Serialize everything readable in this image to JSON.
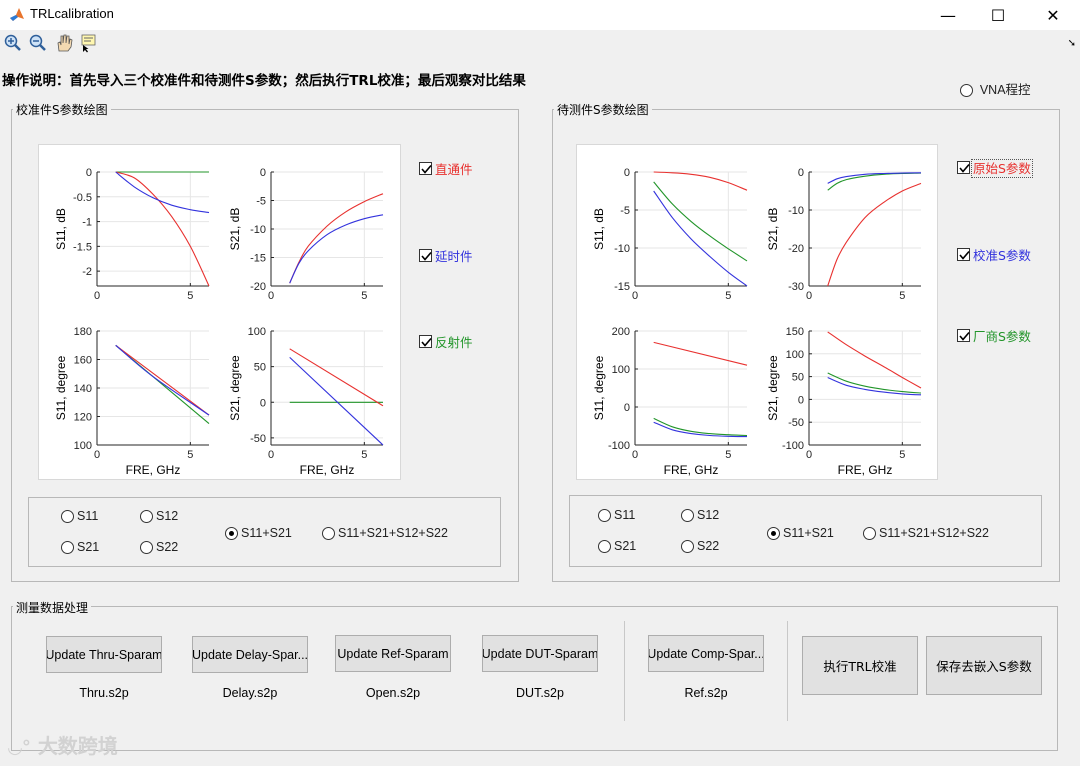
{
  "window": {
    "title": "TRLcalibration",
    "min": "—",
    "max": "☐",
    "close": "✕"
  },
  "toolbar": {
    "tools": [
      "zoom-in-icon",
      "zoom-out-icon",
      "pan-icon",
      "data-cursor-icon"
    ]
  },
  "instruction": "操作说明：首先导入三个校准件和待测件S参数；然后执行TRL校准；最后观察对比结果",
  "vna_radio": {
    "label": "VNA程控",
    "checked": false
  },
  "colors": {
    "red": "#e8312f",
    "blue": "#3333dd",
    "green": "#22952a"
  },
  "left_panel": {
    "title": "校准件S参数绘图",
    "legend": [
      {
        "label": "直通件",
        "color": "#e8312f",
        "checked": true
      },
      {
        "label": "延时件",
        "color": "#3333dd",
        "checked": true
      },
      {
        "label": "反射件",
        "color": "#22952a",
        "checked": true
      }
    ],
    "radios": [
      {
        "label": "S11",
        "checked": false
      },
      {
        "label": "S12",
        "checked": false
      },
      {
        "label": "S21",
        "checked": false
      },
      {
        "label": "S22",
        "checked": false
      },
      {
        "label": "S11+S21",
        "checked": true
      },
      {
        "label": "S11+S21+S12+S22",
        "checked": false
      }
    ]
  },
  "right_panel": {
    "title": "待测件S参数绘图",
    "legend": [
      {
        "label": "原始S参数",
        "color": "#e8312f",
        "checked": true
      },
      {
        "label": "校准S参数",
        "color": "#3333dd",
        "checked": true
      },
      {
        "label": "厂商S参数",
        "color": "#22952a",
        "checked": true
      }
    ],
    "radios": [
      {
        "label": "S11",
        "checked": false
      },
      {
        "label": "S12",
        "checked": false
      },
      {
        "label": "S21",
        "checked": false
      },
      {
        "label": "S22",
        "checked": false
      },
      {
        "label": "S11+S21",
        "checked": true
      },
      {
        "label": "S11+S21+S12+S22",
        "checked": false
      }
    ]
  },
  "chart_data": [
    {
      "type": "line",
      "id": "cal-s11-db",
      "ylabel": "S11, dB",
      "xlabel": "",
      "xlim": [
        0,
        6
      ],
      "ylim": [
        -2.3,
        0
      ],
      "xticks": [
        0,
        5
      ],
      "yticks": [
        0,
        -0.5,
        -1,
        -1.5,
        -2
      ],
      "yticklabels": [
        "0",
        "-0.5",
        "-1",
        "-1.5",
        "-2"
      ],
      "series": [
        {
          "color": "#22952a",
          "x": [
            1,
            6
          ],
          "y": [
            0,
            0
          ]
        },
        {
          "color": "#e8312f",
          "x": [
            1,
            2,
            3,
            4,
            5,
            6
          ],
          "y": [
            0,
            -0.12,
            -0.45,
            -0.9,
            -1.5,
            -2.3
          ]
        },
        {
          "color": "#3333dd",
          "x": [
            1,
            2,
            3,
            4,
            5,
            6
          ],
          "y": [
            0,
            -0.3,
            -0.52,
            -0.67,
            -0.76,
            -0.82
          ]
        }
      ]
    },
    {
      "type": "line",
      "id": "cal-s21-db",
      "ylabel": "S21, dB",
      "xlabel": "",
      "xlim": [
        0,
        6
      ],
      "ylim": [
        -20,
        0
      ],
      "xticks": [
        0,
        5
      ],
      "yticks": [
        0,
        -5,
        -10,
        -15,
        -20
      ],
      "yticklabels": [
        "0",
        "-5",
        "-10",
        "-15",
        "-20"
      ],
      "series": [
        {
          "color": "#e8312f",
          "x": [
            1,
            1.5,
            2,
            3,
            4,
            5,
            6
          ],
          "y": [
            -19.5,
            -15.8,
            -13,
            -9.5,
            -7,
            -5.2,
            -3.8
          ]
        },
        {
          "color": "#3333dd",
          "x": [
            1,
            1.5,
            2,
            3,
            4,
            5,
            6
          ],
          "y": [
            -19.5,
            -16,
            -13.8,
            -11,
            -9.3,
            -8.2,
            -7.5
          ]
        }
      ]
    },
    {
      "type": "line",
      "id": "cal-s11-deg",
      "ylabel": "S11, degree",
      "xlabel": "FRE, GHz",
      "xlim": [
        0,
        6
      ],
      "ylim": [
        100,
        180
      ],
      "xticks": [
        0,
        5
      ],
      "yticks": [
        100,
        120,
        140,
        160,
        180
      ],
      "yticklabels": [
        "100",
        "120",
        "140",
        "160",
        "180"
      ],
      "series": [
        {
          "color": "#22952a",
          "x": [
            1,
            6
          ],
          "y": [
            170,
            115
          ]
        },
        {
          "color": "#e8312f",
          "x": [
            1,
            6
          ],
          "y": [
            170,
            121
          ]
        },
        {
          "color": "#3333dd",
          "x": [
            1,
            3,
            6
          ],
          "y": [
            170,
            148,
            121
          ]
        }
      ]
    },
    {
      "type": "line",
      "id": "cal-s21-deg",
      "ylabel": "S21, degree",
      "xlabel": "FRE, GHz",
      "xlim": [
        0,
        6
      ],
      "ylim": [
        -60,
        100
      ],
      "xticks": [
        0,
        5
      ],
      "yticks": [
        100,
        50,
        0,
        -50
      ],
      "yticklabels": [
        "100",
        "50",
        "0",
        "-50"
      ],
      "series": [
        {
          "color": "#22952a",
          "x": [
            1,
            6
          ],
          "y": [
            0,
            0
          ]
        },
        {
          "color": "#e8312f",
          "x": [
            1,
            6
          ],
          "y": [
            75,
            -5
          ]
        },
        {
          "color": "#3333dd",
          "x": [
            1,
            6
          ],
          "y": [
            63,
            -60
          ]
        }
      ]
    },
    {
      "type": "line",
      "id": "dut-s11-db",
      "ylabel": "S11, dB",
      "xlabel": "",
      "xlim": [
        0,
        6
      ],
      "ylim": [
        -15,
        0
      ],
      "xticks": [
        0,
        5
      ],
      "yticks": [
        0,
        -5,
        -10,
        -15
      ],
      "yticklabels": [
        "0",
        "-5",
        "-10",
        "-15"
      ],
      "series": [
        {
          "color": "#e8312f",
          "x": [
            1,
            2,
            3,
            4,
            5,
            6
          ],
          "y": [
            0,
            -0.1,
            -0.3,
            -0.7,
            -1.4,
            -2.4
          ]
        },
        {
          "color": "#22952a",
          "x": [
            1,
            2,
            3,
            4,
            5,
            6
          ],
          "y": [
            -1.3,
            -4.2,
            -6.5,
            -8.4,
            -10.1,
            -11.7
          ]
        },
        {
          "color": "#3333dd",
          "x": [
            1,
            2,
            3,
            4,
            5,
            6
          ],
          "y": [
            -2.5,
            -6,
            -8.8,
            -11.1,
            -13.2,
            -15
          ]
        }
      ]
    },
    {
      "type": "line",
      "id": "dut-s21-db",
      "ylabel": "S21, dB",
      "xlabel": "",
      "xlim": [
        0,
        6
      ],
      "ylim": [
        -30,
        0
      ],
      "xticks": [
        0,
        5
      ],
      "yticks": [
        0,
        -10,
        -20,
        -30
      ],
      "yticklabels": [
        "0",
        "-10",
        "-20",
        "-30"
      ],
      "series": [
        {
          "color": "#e8312f",
          "x": [
            1,
            1.5,
            2,
            3,
            4,
            5,
            6
          ],
          "y": [
            -30,
            -23,
            -18.5,
            -12,
            -8,
            -5,
            -3
          ]
        },
        {
          "color": "#22952a",
          "x": [
            1,
            1.5,
            2,
            3,
            4,
            5,
            6
          ],
          "y": [
            -4.8,
            -3,
            -2,
            -1.1,
            -0.6,
            -0.4,
            -0.3
          ]
        },
        {
          "color": "#3333dd",
          "x": [
            1,
            1.5,
            2,
            3,
            4,
            5,
            6
          ],
          "y": [
            -3,
            -1.8,
            -1.2,
            -0.6,
            -0.4,
            -0.3,
            -0.2
          ]
        }
      ]
    },
    {
      "type": "line",
      "id": "dut-s11-deg",
      "ylabel": "S11, degree",
      "xlabel": "FRE, GHz",
      "xlim": [
        0,
        6
      ],
      "ylim": [
        -100,
        200
      ],
      "xticks": [
        0,
        5
      ],
      "yticks": [
        200,
        100,
        0,
        -100
      ],
      "yticklabels": [
        "200",
        "100",
        "0",
        "-100"
      ],
      "series": [
        {
          "color": "#e8312f",
          "x": [
            1,
            6
          ],
          "y": [
            170,
            110
          ]
        },
        {
          "color": "#22952a",
          "x": [
            1,
            2,
            3,
            4,
            5,
            6
          ],
          "y": [
            -30,
            -52,
            -64,
            -70,
            -73,
            -75
          ]
        },
        {
          "color": "#3333dd",
          "x": [
            1,
            2,
            3,
            4,
            5,
            6
          ],
          "y": [
            -40,
            -60,
            -70,
            -75,
            -77,
            -78
          ]
        }
      ]
    },
    {
      "type": "line",
      "id": "dut-s21-deg",
      "ylabel": "S21, degree",
      "xlabel": "FRE, GHz",
      "xlim": [
        0,
        6
      ],
      "ylim": [
        -100,
        150
      ],
      "xticks": [
        0,
        5
      ],
      "yticks": [
        150,
        100,
        50,
        0,
        -50,
        -100
      ],
      "yticklabels": [
        "150",
        "100",
        "50",
        "0",
        "-50",
        "-100"
      ],
      "series": [
        {
          "color": "#e8312f",
          "x": [
            1,
            2,
            3,
            4,
            5,
            6
          ],
          "y": [
            148,
            120,
            95,
            72,
            48,
            25
          ]
        },
        {
          "color": "#22952a",
          "x": [
            1,
            2,
            3,
            4,
            5,
            6
          ],
          "y": [
            58,
            40,
            29,
            22,
            17,
            14
          ]
        },
        {
          "color": "#3333dd",
          "x": [
            1,
            2,
            3,
            4,
            5,
            6
          ],
          "y": [
            48,
            31,
            22,
            16,
            12,
            10
          ]
        }
      ]
    }
  ],
  "processing": {
    "title": "测量数据处理",
    "buttons": [
      {
        "label": "Update Thru-Sparam",
        "file": "Thru.s2p"
      },
      {
        "label": "Update Delay-Spar...",
        "file": "Delay.s2p"
      },
      {
        "label": "Update Ref-Sparam",
        "file": "Open.s2p"
      },
      {
        "label": "Update DUT-Sparam",
        "file": "DUT.s2p"
      },
      {
        "label": "Update Comp-Spar...",
        "file": "Ref.s2p"
      }
    ],
    "run_trl": "执行TRL校准",
    "save": "保存去嵌入S参数"
  },
  "watermark": "大数跨境"
}
